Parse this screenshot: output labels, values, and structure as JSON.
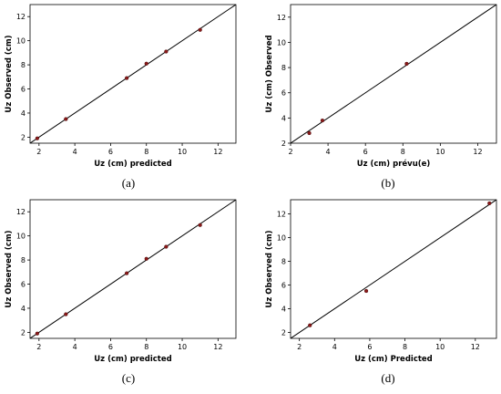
{
  "figure": {
    "captions": [
      "(a)",
      "(b)",
      "(c)",
      "(d)"
    ],
    "colors": {
      "point": "#8b1a1a",
      "line": "#000000",
      "frame": "#000000"
    }
  },
  "chart_data": [
    {
      "type": "scatter",
      "title": "",
      "xlabel": "Uz (cm) predicted",
      "ylabel": "Uz Observed (cm)",
      "xlim": [
        1.5,
        13
      ],
      "ylim": [
        1.5,
        13
      ],
      "xticks": [
        2,
        4,
        6,
        8,
        10,
        12
      ],
      "yticks": [
        2,
        4,
        6,
        8,
        10,
        12
      ],
      "reference_line": "y = x",
      "points": [
        {
          "x": 1.9,
          "y": 1.9
        },
        {
          "x": 3.5,
          "y": 3.5
        },
        {
          "x": 6.9,
          "y": 6.9
        },
        {
          "x": 8.0,
          "y": 8.1
        },
        {
          "x": 9.1,
          "y": 9.1
        },
        {
          "x": 11.0,
          "y": 10.9
        }
      ]
    },
    {
      "type": "scatter",
      "title": "",
      "xlabel": "Uz (cm) prévu(e)",
      "ylabel": "Uz (cm) Observed",
      "xlim": [
        2,
        13
      ],
      "ylim": [
        2,
        13
      ],
      "xticks": [
        2,
        4,
        6,
        8,
        10,
        12
      ],
      "yticks": [
        2,
        4,
        6,
        8,
        10,
        12
      ],
      "reference_line": "y = x",
      "points": [
        {
          "x": 3.0,
          "y": 2.8
        },
        {
          "x": 3.7,
          "y": 3.8
        },
        {
          "x": 8.2,
          "y": 8.3
        }
      ]
    },
    {
      "type": "scatter",
      "title": "",
      "xlabel": "Uz (cm) predicted",
      "ylabel": "Uz Observed (cm)",
      "xlim": [
        1.5,
        13
      ],
      "ylim": [
        1.5,
        13
      ],
      "xticks": [
        2,
        4,
        6,
        8,
        10,
        12
      ],
      "yticks": [
        2,
        4,
        6,
        8,
        10,
        12
      ],
      "reference_line": "y = x",
      "points": [
        {
          "x": 1.9,
          "y": 1.9
        },
        {
          "x": 3.5,
          "y": 3.5
        },
        {
          "x": 6.9,
          "y": 6.9
        },
        {
          "x": 8.0,
          "y": 8.1
        },
        {
          "x": 9.1,
          "y": 9.1
        },
        {
          "x": 11.0,
          "y": 10.9
        }
      ]
    },
    {
      "type": "scatter",
      "title": "",
      "xlabel": "Uz (cm) Predicted",
      "ylabel": "Uz Observed (cm)",
      "xlim": [
        1.5,
        13.2
      ],
      "ylim": [
        1.5,
        13.2
      ],
      "xticks": [
        2,
        4,
        6,
        8,
        10,
        12
      ],
      "yticks": [
        2,
        4,
        6,
        8,
        10,
        12
      ],
      "reference_line": "y = x",
      "points": [
        {
          "x": 2.6,
          "y": 2.6
        },
        {
          "x": 5.8,
          "y": 5.5
        },
        {
          "x": 12.8,
          "y": 12.9
        }
      ]
    }
  ]
}
